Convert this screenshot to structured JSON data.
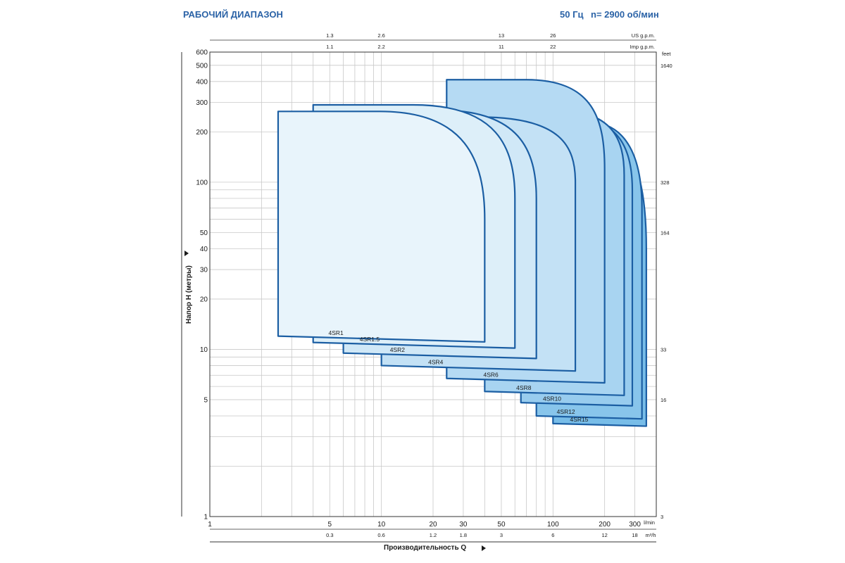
{
  "header": {
    "title": "РАБОЧИЙ ДИАПАЗОН",
    "frequency": "50 Гц",
    "speed": "n= 2900 об/мин"
  },
  "chart_data": {
    "type": "area",
    "x_scale": "log",
    "y_scale": "log",
    "xlabel": "Производительность Q",
    "ylabel": "Напор H (метры)",
    "x_unit_main": "l/min",
    "x_unit_m3h": "m³/h",
    "x_unit_us": "US g.p.m.",
    "x_unit_imp": "Imp g.p.m.",
    "y_unit_feet": "feet",
    "xlim": [
      1,
      400
    ],
    "ylim": [
      1,
      600
    ],
    "x_ticks": [
      1,
      5,
      10,
      20,
      30,
      50,
      100,
      200,
      300
    ],
    "x_ticks_m3h": [
      {
        "at": 5,
        "label": "0.3"
      },
      {
        "at": 10,
        "label": "0.6"
      },
      {
        "at": 20,
        "label": "1.2"
      },
      {
        "at": 30,
        "label": "1.8"
      },
      {
        "at": 50,
        "label": "3"
      },
      {
        "at": 100,
        "label": "6"
      },
      {
        "at": 200,
        "label": "12"
      },
      {
        "at": 300,
        "label": "18"
      }
    ],
    "x_ticks_us_gpm": [
      {
        "at": 5,
        "label": "1.3"
      },
      {
        "at": 10,
        "label": "2.6"
      },
      {
        "at": 50,
        "label": "13"
      },
      {
        "at": 100,
        "label": "26"
      }
    ],
    "x_ticks_imp_gpm": [
      {
        "at": 5,
        "label": "1.1"
      },
      {
        "at": 10,
        "label": "2.2"
      },
      {
        "at": 50,
        "label": "11"
      },
      {
        "at": 100,
        "label": "22"
      }
    ],
    "y_ticks": [
      1,
      5,
      10,
      20,
      30,
      40,
      50,
      100,
      200,
      300,
      400,
      500,
      600
    ],
    "y_ticks_feet": [
      {
        "at": 1,
        "label": "3"
      },
      {
        "at": 5,
        "label": "16"
      },
      {
        "at": 10,
        "label": "33"
      },
      {
        "at": 50,
        "label": "164"
      },
      {
        "at": 100,
        "label": "328"
      },
      {
        "at": 500,
        "label": "1640"
      }
    ],
    "series": [
      {
        "name": "4SR15",
        "q_min": 100,
        "q_max": 350,
        "h_min": 3.6,
        "h_max": 190,
        "q_curve": 300,
        "h_curve": 40,
        "color": "#78bde8"
      },
      {
        "name": "4SR12",
        "q_min": 80,
        "q_max": 330,
        "h_min": 4.0,
        "h_max": 230,
        "q_curve": 270,
        "h_curve": 70,
        "color": "#88c5eb"
      },
      {
        "name": "4SR10",
        "q_min": 65,
        "q_max": 290,
        "h_min": 4.8,
        "h_max": 240,
        "q_curve": 240,
        "h_curve": 90,
        "color": "#98ccee"
      },
      {
        "name": "4SR8",
        "q_min": 40,
        "q_max": 260,
        "h_min": 5.6,
        "h_max": 270,
        "q_curve": 220,
        "h_curve": 110,
        "color": "#a8d4f1"
      },
      {
        "name": "4SR6",
        "q_min": 24,
        "q_max": 200,
        "h_min": 6.7,
        "h_max": 410,
        "q_curve": 170,
        "h_curve": 120,
        "color": "#b5daf3"
      },
      {
        "name": "4SR4",
        "q_min": 10,
        "q_max": 135,
        "h_min": 8.0,
        "h_max": 245,
        "q_curve": 110,
        "h_curve": 100,
        "color": "#c3e1f5"
      },
      {
        "name": "4SR2",
        "q_min": 6,
        "q_max": 80,
        "h_min": 9.5,
        "h_max": 270,
        "q_curve": 62,
        "h_curve": 80,
        "color": "#d0e8f7"
      },
      {
        "name": "4SR1.5",
        "q_min": 4,
        "q_max": 60,
        "h_min": 11.0,
        "h_max": 290,
        "q_curve": 46,
        "h_curve": 80,
        "color": "#ddeff9"
      },
      {
        "name": "4SR1",
        "q_min": 2.5,
        "q_max": 40,
        "h_min": 12.0,
        "h_max": 265,
        "q_curve": 30,
        "h_curve": 60,
        "color": "#e8f4fb"
      }
    ]
  }
}
